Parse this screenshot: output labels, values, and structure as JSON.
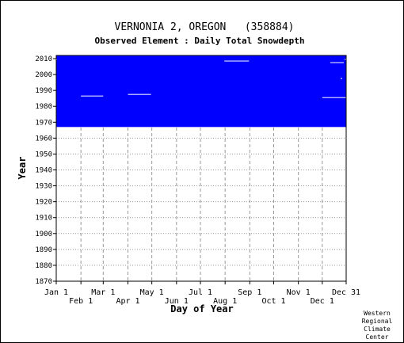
{
  "chart_data": {
    "type": "heatmap",
    "title": "VERNONIA 2, OREGON   (358884)",
    "subtitle": "Observed Element : Daily Total Snowdepth",
    "xlabel": "Day of Year",
    "ylabel": "Year",
    "x_ticks_top": [
      "Jan 1",
      "Mar 1",
      "May 1",
      "Jul 1",
      "Sep 1",
      "Nov 1",
      "Dec 31"
    ],
    "x_ticks_bottom": [
      "Feb 1",
      "Apr 1",
      "Jun 1",
      "Aug 1",
      "Oct 1",
      "Dec 1"
    ],
    "xlim": [
      1,
      365
    ],
    "ylim": [
      1870,
      2012
    ],
    "y_ticks": [
      1870,
      1880,
      1890,
      1900,
      1910,
      1920,
      1930,
      1940,
      1950,
      1960,
      1970,
      1980,
      1990,
      2000,
      2010
    ],
    "grid": true,
    "data_color": "#0000ff",
    "coverage": {
      "year_start": 1967,
      "year_end": 2011,
      "missing_segments": [
        {
          "year": 1986,
          "day_start": 32,
          "day_end": 60
        },
        {
          "year": 1987,
          "day_start": 91,
          "day_end": 120
        },
        {
          "year": 2008,
          "day_start": 212,
          "day_end": 243
        },
        {
          "year": 1985,
          "day_start": 335,
          "day_end": 365
        },
        {
          "year": 2007,
          "day_start": 345,
          "day_end": 362
        },
        {
          "year": 1997,
          "day_start": 358,
          "day_end": 360
        },
        {
          "year": 2009,
          "day_start": 1,
          "day_end": 2
        },
        {
          "year": 2009,
          "day_start": 363,
          "day_end": 365
        }
      ]
    },
    "credit": [
      "Western",
      "Regional",
      "Climate",
      "Center"
    ]
  }
}
